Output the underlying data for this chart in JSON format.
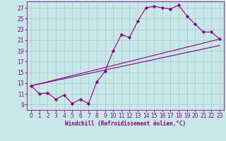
{
  "background_color": "#c8e8e8",
  "grid_color": "#a8c8c8",
  "line_color": "#880088",
  "xlabel": "Windchill (Refroidissement éolien,°C)",
  "yticks": [
    9,
    11,
    13,
    15,
    17,
    19,
    21,
    23,
    25,
    27
  ],
  "xticks": [
    0,
    1,
    2,
    3,
    4,
    5,
    6,
    7,
    8,
    9,
    10,
    11,
    12,
    13,
    14,
    15,
    16,
    17,
    18,
    19,
    20,
    21,
    22,
    23
  ],
  "xlim": [
    -0.5,
    23.5
  ],
  "ylim": [
    8.0,
    28.2
  ],
  "main_x": [
    0,
    1,
    2,
    3,
    4,
    5,
    6,
    7,
    8,
    9,
    10,
    11,
    12,
    13,
    14,
    15,
    16,
    17,
    18,
    19,
    20,
    21,
    22,
    23
  ],
  "main_y": [
    12.5,
    11.0,
    11.2,
    10.0,
    10.8,
    9.2,
    10.0,
    9.2,
    13.2,
    15.2,
    19.0,
    22.0,
    21.5,
    24.5,
    27.0,
    27.3,
    27.0,
    26.8,
    27.5,
    25.5,
    24.0,
    22.5,
    22.5,
    21.2
  ],
  "trend1_x": [
    0,
    23
  ],
  "trend1_y": [
    12.5,
    21.2
  ],
  "trend2_x": [
    0,
    23
  ],
  "trend2_y": [
    12.5,
    20.0
  ],
  "figsize": [
    3.2,
    2.0
  ],
  "dpi": 100,
  "tick_labelsize": 5.5,
  "xlabel_fontsize": 5.5
}
